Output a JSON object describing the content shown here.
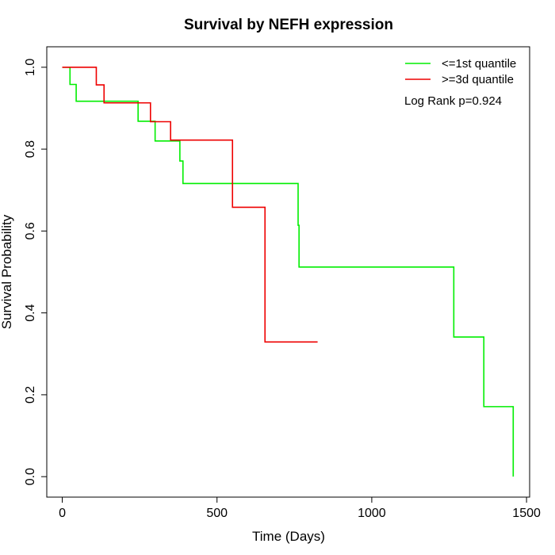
{
  "chart_data": {
    "type": "line",
    "title": "Survival by NEFH expression",
    "xlabel": "Time (Days)",
    "ylabel": "Survival Probability",
    "xlim": [
      -50,
      1510
    ],
    "ylim": [
      -0.05,
      1.05
    ],
    "x_ticks": [
      0,
      500,
      1000,
      1500
    ],
    "y_ticks": [
      0.0,
      0.2,
      0.4,
      0.6,
      0.8,
      1.0
    ],
    "x_tick_labels": [
      "0",
      "500",
      "1000",
      "1500"
    ],
    "y_tick_labels": [
      "0.0",
      "0.2",
      "0.4",
      "0.6",
      "0.8",
      "1.0"
    ],
    "grid": false,
    "legend_position": "top-right",
    "annotation": "Log Rank p=0.924",
    "series": [
      {
        "name": "<=1st quantile",
        "color": "#00ee00",
        "step_x": [
          0,
          25,
          45,
          245,
          300,
          380,
          390,
          762,
          765,
          1265,
          1362,
          1457
        ],
        "step_y": [
          1.0,
          0.958,
          0.917,
          0.868,
          0.82,
          0.771,
          0.716,
          0.614,
          0.512,
          0.341,
          0.171,
          0.0
        ]
      },
      {
        "name": ">=3d quantile",
        "color": "#ee0000",
        "step_x": [
          0,
          110,
          135,
          285,
          350,
          550,
          655,
          825
        ],
        "step_y": [
          1.0,
          0.957,
          0.913,
          0.867,
          0.822,
          0.658,
          0.329,
          0.329
        ]
      }
    ]
  }
}
